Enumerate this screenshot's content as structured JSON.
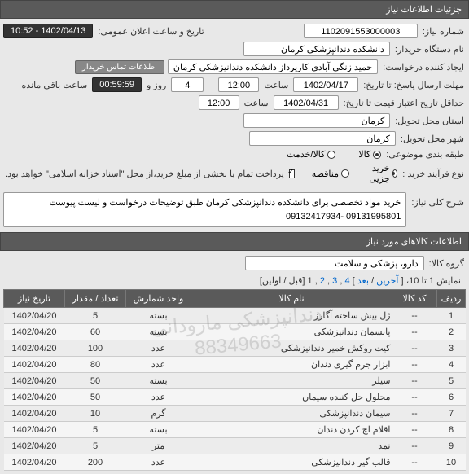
{
  "headers": {
    "details": "جزئیات اطلاعات نیاز",
    "items": "اطلاعات کالاهای مورد نیاز"
  },
  "fields": {
    "need_number": {
      "label": "شماره نیاز:",
      "value": "1102091553000003"
    },
    "announce_date": {
      "label": "تاریخ و ساعت اعلان عمومی:",
      "value": "1402/04/13 - 10:52"
    },
    "buyer_org": {
      "label": "نام دستگاه خریدار:",
      "value": "دانشکده دندانپزشکی کرمان"
    },
    "requester": {
      "label": "ایجاد کننده درخواست:",
      "value": "حمید زنگی آبادی کارپرداز دانشکده دندانپزشکی کرمان"
    },
    "contact_btn": "اطلاعات تماس خریدار",
    "deadline": {
      "label": "مهلت ارسال پاسخ: تا تاریخ:",
      "date": "1402/04/17",
      "time_label": "ساعت",
      "time": "12:00",
      "days_label": "روز و",
      "days": "4",
      "remain": "ساعت باقی مانده",
      "countdown": "00:59:59"
    },
    "validity": {
      "label": "حداقل تاریخ اعتبار قیمت تا تاریخ:",
      "date": "1402/04/31",
      "time_label": "ساعت",
      "time": "12:00"
    },
    "province": {
      "label": "استان محل تحویل:",
      "value": "کرمان"
    },
    "city": {
      "label": "شهر محل تحویل:",
      "value": "کرمان"
    },
    "category": {
      "label": "طبقه بندی موضوعی:",
      "opts": [
        "کالا",
        "کالا/خدمت"
      ],
      "selected": 0
    },
    "process": {
      "label": "نوع فرآیند خرید :",
      "opts": [
        "خرید جزیی",
        "مناقصه"
      ],
      "selected": 0
    },
    "payment_note": "پرداخت تمام یا بخشی از مبلغ خرید،از محل \"اسناد خزانه اسلامی\" خواهد بود.",
    "summary": {
      "label": "شرح کلی نیاز:",
      "value": "خرید مواد تخصصی برای دانشکده دندانپزشکی کرمان طبق توضیحات درخواست و لیست پیوست 09131995801 -09132417934"
    },
    "group": {
      "label": "گروه کالا:",
      "value": "دارو، پزشکی و سلامت"
    }
  },
  "pagination": {
    "text_prefix": "نمایش 1 تا 10، [",
    "last": "آخرین",
    "next": "بعد",
    "pages": [
      "4",
      "3",
      "2"
    ],
    "current": "1",
    "text_suffix": "[قبل / اولین]"
  },
  "table": {
    "columns": [
      "ردیف",
      "کد کالا",
      "نام کالا",
      "واحد شمارش",
      "تعداد / مقدار",
      "تاریخ نیاز"
    ],
    "rows": [
      [
        "1",
        "--",
        "ژل بیش ساخته آگارز",
        "بسته",
        "5",
        "1402/04/20"
      ],
      [
        "2",
        "--",
        "پانسمان دندانپزشکی",
        "بسته",
        "60",
        "1402/04/20"
      ],
      [
        "3",
        "--",
        "کیت روکش خمیر دندانپزشکی",
        "عدد",
        "100",
        "1402/04/20"
      ],
      [
        "4",
        "--",
        "ابزار جرم گیری دندان",
        "عدد",
        "80",
        "1402/04/20"
      ],
      [
        "5",
        "--",
        "سیلر",
        "بسته",
        "50",
        "1402/04/20"
      ],
      [
        "6",
        "--",
        "محلول حل کننده سیمان",
        "عدد",
        "50",
        "1402/04/20"
      ],
      [
        "7",
        "--",
        "سیمان دندانپزشکی",
        "گرم",
        "10",
        "1402/04/20"
      ],
      [
        "8",
        "--",
        "اقلام اچ کردن دندان",
        "بسته",
        "5",
        "1402/04/20"
      ],
      [
        "9",
        "--",
        "نمد",
        "متر",
        "5",
        "1402/04/20"
      ],
      [
        "10",
        "--",
        "قالب گیر دندانپزشکی",
        "عدد",
        "200",
        "1402/04/20"
      ]
    ]
  },
  "watermarks": [
    "دندانپزشکی مارودانی",
    "88349663",
    "-دندانپزشکی مارو"
  ]
}
